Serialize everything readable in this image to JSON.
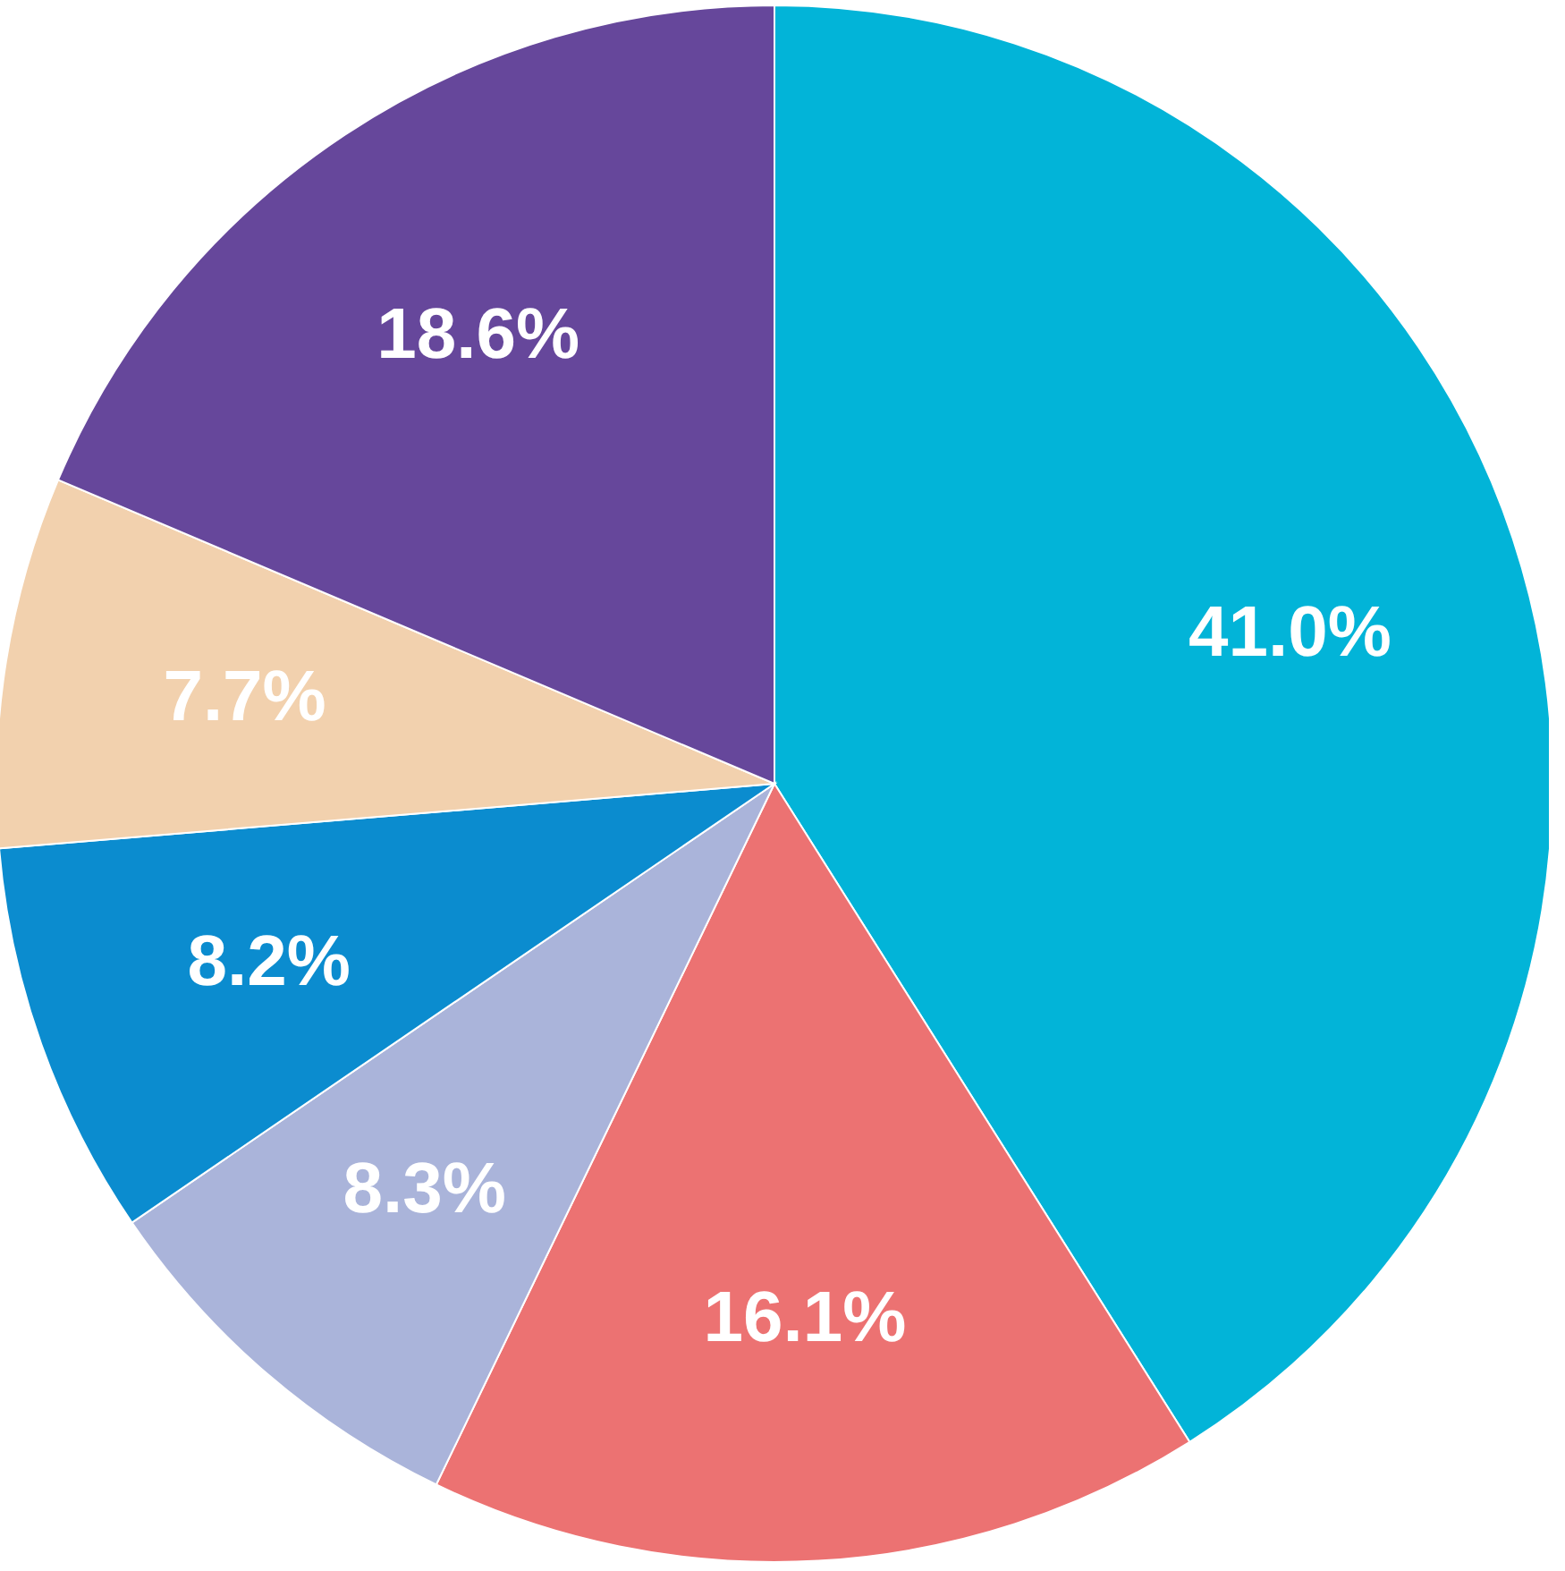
{
  "chart_data": {
    "type": "pie",
    "categories": [
      null,
      null,
      null,
      null,
      null,
      null
    ],
    "values": [
      41.0,
      16.1,
      8.3,
      8.2,
      7.7,
      18.6
    ],
    "colors": [
      "#02b4d8",
      "#ec7272",
      "#aab4da",
      "#0b8ccf",
      "#f2d1ae",
      "#66479b"
    ],
    "value_labels": [
      "41.0%",
      "16.1%",
      "8.3%",
      "8.2%",
      "7.7%",
      "18.6%"
    ],
    "legend": false
  }
}
